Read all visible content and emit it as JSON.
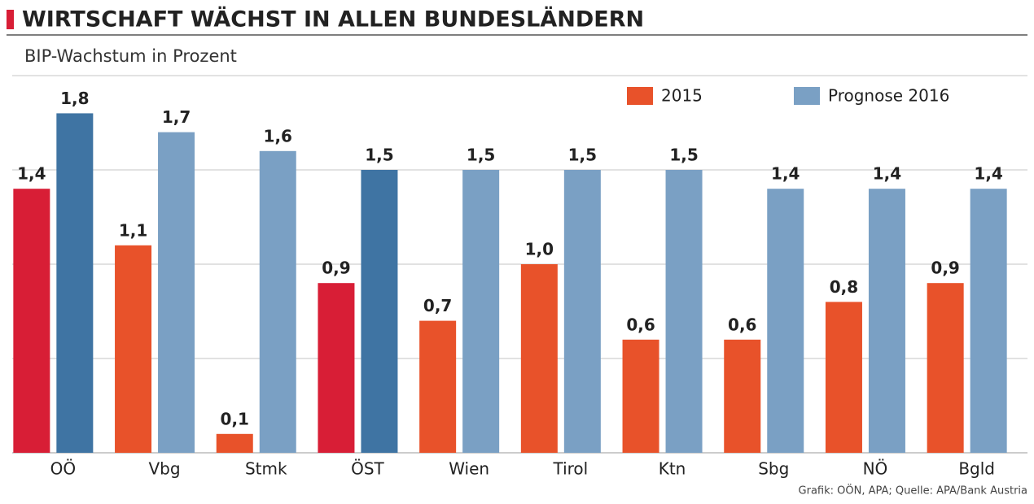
{
  "chart_data": {
    "type": "bar",
    "title": "WIRTSCHAFT WÄCHST IN ALLEN BUNDESLÄNDERN",
    "subtitle": "BIP-Wachstum in Prozent",
    "source": "Grafik: OÖN, APA; Quelle: APA/Bank Austria",
    "categories": [
      "OÖ",
      "Vbg",
      "Stmk",
      "ÖST",
      "Wien",
      "Tirol",
      "Ktn",
      "Sbg",
      "NÖ",
      "Bgld"
    ],
    "series": [
      {
        "name": "2015",
        "color": "#e8522a",
        "colors": [
          "#d81e36",
          "#e8522a",
          "#e8522a",
          "#d81e36",
          "#e8522a",
          "#e8522a",
          "#e8522a",
          "#e8522a",
          "#e8522a",
          "#e8522a"
        ],
        "values": [
          1.4,
          1.1,
          0.1,
          0.9,
          0.7,
          1.0,
          0.6,
          0.6,
          0.8,
          0.9
        ],
        "value_labels": [
          "1,4",
          "1,1",
          "0,1",
          "0,9",
          "0,7",
          "1,0",
          "0,6",
          "0,6",
          "0,8",
          "0,9"
        ]
      },
      {
        "name": "Prognose 2016",
        "color": "#7aa0c4",
        "colors": [
          "#3f74a3",
          "#7aa0c4",
          "#7aa0c4",
          "#3f74a3",
          "#7aa0c4",
          "#7aa0c4",
          "#7aa0c4",
          "#7aa0c4",
          "#7aa0c4",
          "#7aa0c4"
        ],
        "values": [
          1.8,
          1.7,
          1.6,
          1.5,
          1.5,
          1.5,
          1.5,
          1.4,
          1.4,
          1.4
        ],
        "value_labels": [
          "1,8",
          "1,7",
          "1,6",
          "1,5",
          "1,5",
          "1,5",
          "1,5",
          "1,4",
          "1,4",
          "1,4"
        ]
      }
    ],
    "ylim": [
      0,
      2
    ],
    "yticks": [
      0.5,
      1,
      1.5,
      2
    ],
    "grid": true
  }
}
